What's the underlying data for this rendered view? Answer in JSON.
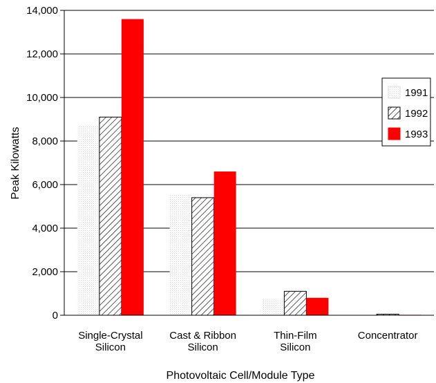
{
  "chart_data": {
    "type": "bar",
    "title": "",
    "xlabel": "Photovoltaic Cell/Module Type",
    "ylabel": "Peak Kilowatts",
    "ylim": [
      0,
      14000
    ],
    "yticks": [
      "0",
      "2,000",
      "4,000",
      "6,000",
      "8,000",
      "10,000",
      "12,000",
      "14,000"
    ],
    "grid": true,
    "legend_position": "right",
    "categories": [
      [
        "Single-Crystal",
        "Silicon"
      ],
      [
        "Cast & Ribbon",
        "Silicon"
      ],
      [
        "Thin-Film",
        "Silicon"
      ],
      [
        "Concentrator"
      ]
    ],
    "series": [
      {
        "name": "1991",
        "values": [
          8700,
          5550,
          750,
          20
        ],
        "style": "dotted",
        "color": "#f2f2f2"
      },
      {
        "name": "1992",
        "values": [
          9100,
          5400,
          1100,
          50
        ],
        "style": "hatched",
        "color": "#000000"
      },
      {
        "name": "1993",
        "values": [
          13600,
          6600,
          800,
          20
        ],
        "style": "solid",
        "color": "#ff0000"
      }
    ]
  }
}
